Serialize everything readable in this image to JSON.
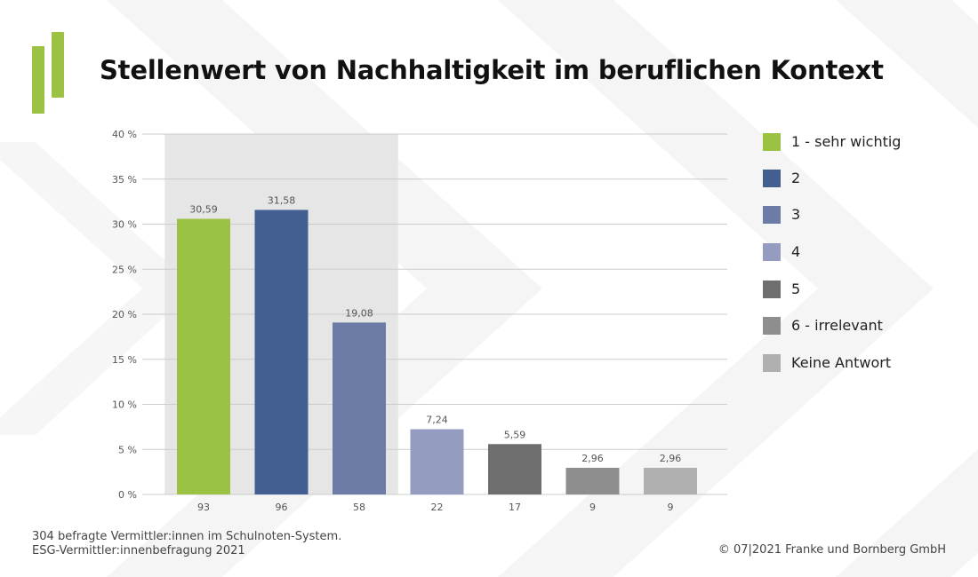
{
  "title": "Stellenwert von Nachhaltigkeit im beruflichen Kontext",
  "colors": {
    "brand_green": "#9bc243",
    "highlight_band": "#e6e6e6",
    "grid": "#cccccc"
  },
  "chart_data": {
    "type": "bar",
    "title": "Stellenwert von Nachhaltigkeit im beruflichen Kontext",
    "categories": [
      "93",
      "96",
      "58",
      "22",
      "17",
      "9",
      "9"
    ],
    "values": [
      30.59,
      31.58,
      19.08,
      7.24,
      5.59,
      2.96,
      2.96
    ],
    "value_labels": [
      "30,59",
      "31,58",
      "19,08",
      "7,24",
      "5,59",
      "2,96",
      "2,96"
    ],
    "series": [
      {
        "name": "1 - sehr wichtig",
        "value": 30.59,
        "count": "93",
        "color": "#9bc243"
      },
      {
        "name": "2",
        "value": 31.58,
        "count": "96",
        "color": "#435f91"
      },
      {
        "name": "3",
        "value": 19.08,
        "count": "58",
        "color": "#6c7ca6"
      },
      {
        "name": "4",
        "value": 7.24,
        "count": "22",
        "color": "#949cc0"
      },
      {
        "name": "5",
        "value": 5.59,
        "count": "17",
        "color": "#6e6e6e"
      },
      {
        "name": "6 - irrelevant",
        "value": 2.96,
        "count": "9",
        "color": "#8e8e8e"
      },
      {
        "name": "Keine Antwort",
        "value": 2.96,
        "count": "9",
        "color": "#b0b0b0"
      }
    ],
    "y_ticks": [
      "0 %",
      "5 %",
      "10 %",
      "15 %",
      "20 %",
      "25 %",
      "30 %",
      "35 %",
      "40 %"
    ],
    "y_tick_values": [
      0,
      5,
      10,
      15,
      20,
      25,
      30,
      35,
      40
    ],
    "ylim": [
      0,
      40
    ],
    "xlabel": "",
    "ylabel": "",
    "grid": true,
    "legend_position": "right",
    "highlighted_categories": [
      0,
      1,
      2
    ]
  },
  "footnote": {
    "line1": "304 befragte Vermittler:innen im Schulnoten-System.",
    "line2": "ESG-Vermittler:innenbefragung 2021"
  },
  "copyright": "© 07|2021 Franke und Bornberg GmbH"
}
